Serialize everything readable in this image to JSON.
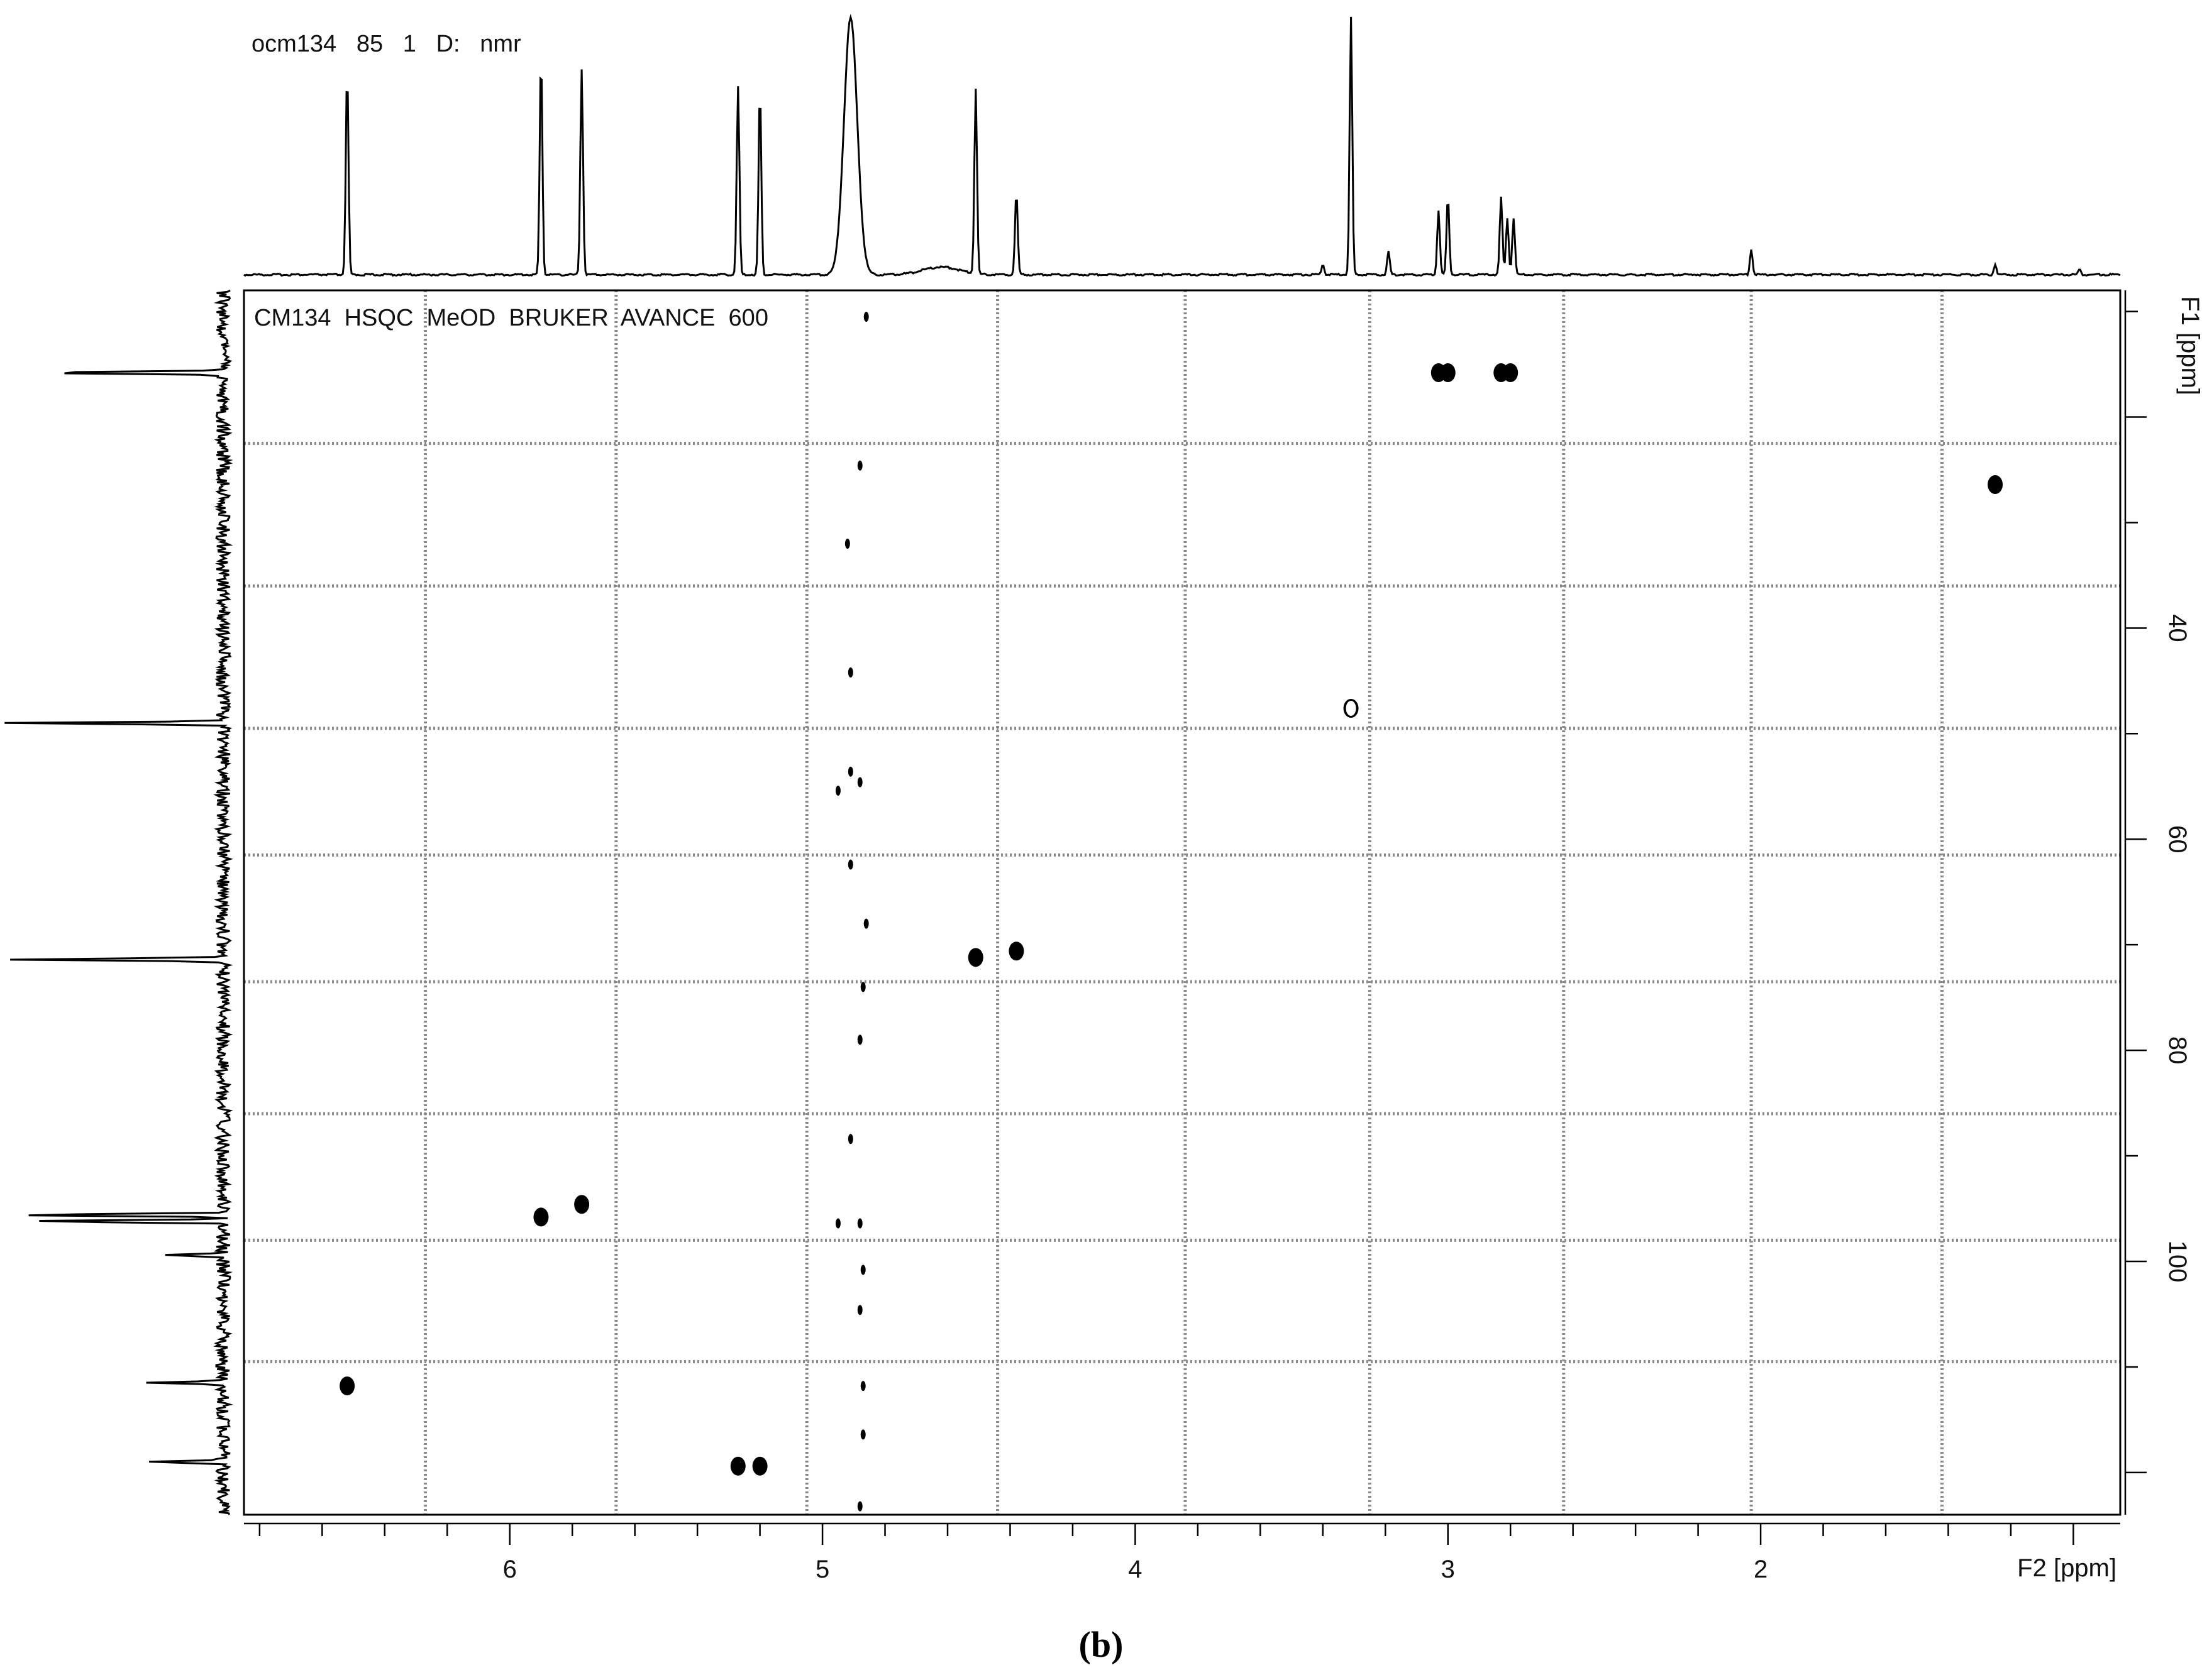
{
  "top_trace_label": "ocm134   85   1   D:   nmr",
  "panel_label": "(b)",
  "chart_data": {
    "type": "scatter",
    "title": "CM134  HSQC  MeOD  BRUKER  AVANCE  600",
    "xlabel": "F2 [ppm]",
    "ylabel": "F1 [ppm]",
    "xlim": [
      6.85,
      0.85
    ],
    "ylim": [
      8,
      124
    ],
    "x_reversed": true,
    "y_reversed": true,
    "xticks": [
      6,
      5,
      4,
      3,
      2
    ],
    "yticks": [
      40,
      60,
      80,
      100
    ],
    "x_grid": [
      6.27,
      5.66,
      5.05,
      4.44,
      3.84,
      3.25,
      2.63,
      2.03,
      1.42
    ],
    "y_grid": [
      22.5,
      36,
      49.5,
      61.5,
      73.5,
      86,
      98,
      109.5
    ],
    "grid": true,
    "cross_peaks": [
      {
        "x": 6.52,
        "y": 111.8
      },
      {
        "x": 5.9,
        "y": 95.8
      },
      {
        "x": 5.77,
        "y": 94.6
      },
      {
        "x": 5.27,
        "y": 119.4
      },
      {
        "x": 5.2,
        "y": 119.4
      },
      {
        "x": 4.51,
        "y": 71.2
      },
      {
        "x": 4.38,
        "y": 70.6
      },
      {
        "x": 3.31,
        "y": 47.6
      },
      {
        "x": 3.03,
        "y": 15.8
      },
      {
        "x": 3.0,
        "y": 15.8
      },
      {
        "x": 2.83,
        "y": 15.8
      },
      {
        "x": 2.8,
        "y": 15.8
      },
      {
        "x": 1.25,
        "y": 26.4
      },
      {
        "x": 4.86,
        "y": 10.5
      },
      {
        "x": 4.88,
        "y": 24.6
      },
      {
        "x": 4.92,
        "y": 32.0
      },
      {
        "x": 4.91,
        "y": 44.2
      },
      {
        "x": 4.88,
        "y": 54.6
      },
      {
        "x": 4.91,
        "y": 53.6
      },
      {
        "x": 4.95,
        "y": 55.4
      },
      {
        "x": 4.91,
        "y": 62.4
      },
      {
        "x": 4.86,
        "y": 68.0
      },
      {
        "x": 4.87,
        "y": 74.0
      },
      {
        "x": 4.88,
        "y": 79.0
      },
      {
        "x": 4.91,
        "y": 88.4
      },
      {
        "x": 4.95,
        "y": 96.4
      },
      {
        "x": 4.88,
        "y": 96.4
      },
      {
        "x": 4.87,
        "y": 100.8
      },
      {
        "x": 4.88,
        "y": 104.6
      },
      {
        "x": 4.87,
        "y": 111.8
      },
      {
        "x": 4.87,
        "y": 116.4
      },
      {
        "x": 4.88,
        "y": 123.2
      }
    ],
    "f2_projection_peaks": [
      {
        "x": 6.52,
        "height": 0.79
      },
      {
        "x": 5.9,
        "height": 0.85
      },
      {
        "x": 5.77,
        "height": 0.8
      },
      {
        "x": 5.27,
        "height": 0.73
      },
      {
        "x": 5.2,
        "height": 0.72
      },
      {
        "x": 4.91,
        "height": 1.0
      },
      {
        "x": 4.62,
        "height": 0.03
      },
      {
        "x": 4.51,
        "height": 0.72
      },
      {
        "x": 4.38,
        "height": 0.32
      },
      {
        "x": 3.4,
        "height": 0.04
      },
      {
        "x": 3.31,
        "height": 1.0
      },
      {
        "x": 3.19,
        "height": 0.09
      },
      {
        "x": 3.03,
        "height": 0.25
      },
      {
        "x": 3.0,
        "height": 0.3
      },
      {
        "x": 2.83,
        "height": 0.3
      },
      {
        "x": 2.81,
        "height": 0.22
      },
      {
        "x": 2.79,
        "height": 0.22
      },
      {
        "x": 2.03,
        "height": 0.1
      },
      {
        "x": 1.25,
        "height": 0.04
      },
      {
        "x": 0.98,
        "height": 0.02
      }
    ],
    "f1_projection_peaks": [
      {
        "y": 15.8,
        "height": 0.93
      },
      {
        "y": 49.0,
        "height": 1.0
      },
      {
        "y": 71.4,
        "height": 1.0
      },
      {
        "y": 95.6,
        "height": 1.0
      },
      {
        "y": 96.2,
        "height": 0.95
      },
      {
        "y": 99.4,
        "height": 0.25
      },
      {
        "y": 111.5,
        "height": 0.34
      },
      {
        "y": 119.0,
        "height": 0.38
      }
    ]
  }
}
